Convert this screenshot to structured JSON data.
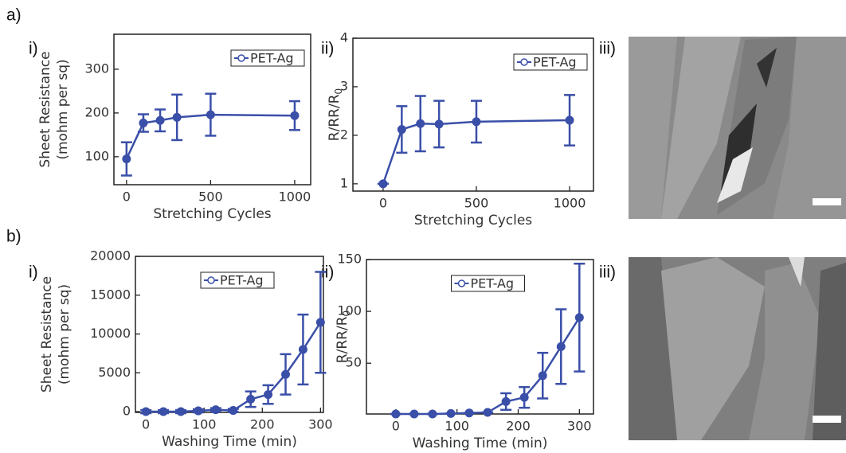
{
  "labels": {
    "a": "a)",
    "b": "b)",
    "i": "i)",
    "ii": "ii)",
    "iii": "iii)"
  },
  "chart_data": [
    {
      "type": "line",
      "xlabel": "Stretching Cycles",
      "ylabel": [
        "Sheet Resistance",
        "(mohm per sq)"
      ],
      "x": [
        0,
        100,
        200,
        300,
        500,
        1000
      ],
      "series": [
        {
          "name": "PET-Ag",
          "color": "#3a4fa8",
          "values": [
            95,
            177,
            183,
            190,
            196,
            194
          ],
          "errors": [
            38,
            20,
            25,
            52,
            48,
            33
          ]
        }
      ],
      "xlim": [
        -75,
        1095
      ],
      "ylim": [
        36,
        380
      ],
      "xticks": [
        0,
        500,
        1000
      ],
      "yticks": [
        100,
        200,
        300
      ],
      "legend": "upper right"
    },
    {
      "type": "line",
      "xlabel": "Stretching Cycles",
      "ylabel": [
        "R/R"
      ],
      "ylabel_subscript": "0",
      "x": [
        0,
        100,
        200,
        300,
        500,
        1000
      ],
      "series": [
        {
          "name": "PET-Ag",
          "color": "#3a4fa8",
          "values": [
            1,
            2.12,
            2.24,
            2.23,
            2.28,
            2.31
          ],
          "errors": [
            0,
            0.48,
            0.57,
            0.48,
            0.43,
            0.52
          ]
        }
      ],
      "xlim": [
        -162,
        1128
      ],
      "ylim": [
        0.85,
        4.0
      ],
      "xticks": [
        0,
        500,
        1000
      ],
      "yticks": [
        1,
        2,
        3,
        4
      ],
      "legend": "upper right"
    },
    {
      "type": "line",
      "xlabel": "Washing Time (min)",
      "ylabel": [
        "Sheet Resistance",
        "(mohm per sq)"
      ],
      "x": [
        0,
        30,
        60,
        90,
        120,
        150,
        180,
        210,
        240,
        270,
        300
      ],
      "series": [
        {
          "name": "PET-Ag",
          "color": "#3a4fa8",
          "values": [
            0,
            0,
            0,
            100,
            250,
            150,
            1600,
            2200,
            4800,
            8000,
            11500
          ],
          "errors": [
            200,
            200,
            200,
            200,
            200,
            200,
            1000,
            1200,
            2600,
            4500,
            6500
          ]
        }
      ],
      "xlim": [
        -18,
        305
      ],
      "ylim": [
        -100,
        20000
      ],
      "xticks": [
        0,
        100,
        200,
        300
      ],
      "yticks": [
        0,
        5000,
        10000,
        15000,
        20000
      ],
      "legend": "upper center"
    },
    {
      "type": "line",
      "xlabel": "Washing Time (min)",
      "ylabel": [
        "R/R"
      ],
      "ylabel_subscript": "0",
      "x": [
        0,
        30,
        60,
        90,
        120,
        150,
        180,
        210,
        240,
        270,
        300
      ],
      "series": [
        {
          "name": "PET-Ag",
          "color": "#3a4fa8",
          "values": [
            1,
            1,
            1,
            1.5,
            2,
            2.5,
            13,
            17,
            38,
            66,
            94
          ],
          "errors": [
            0,
            0,
            0,
            0,
            0,
            0,
            8,
            10,
            22,
            36,
            52
          ]
        }
      ],
      "xlim": [
        -48,
        323
      ],
      "ylim": [
        1,
        150
      ],
      "xticks": [
        0,
        100,
        200,
        300
      ],
      "yticks": [
        50,
        100,
        150
      ],
      "legend": "upper center"
    }
  ]
}
